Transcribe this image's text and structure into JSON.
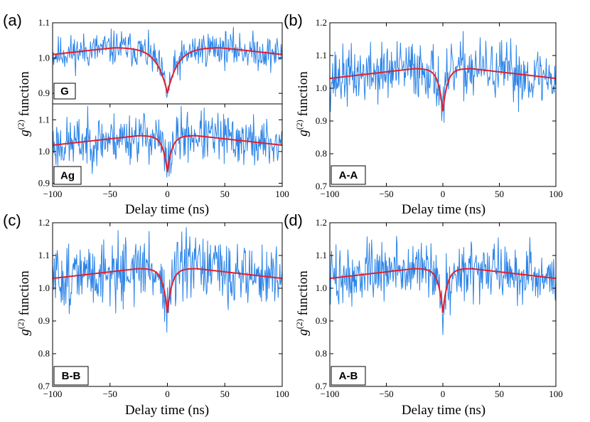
{
  "figure": {
    "panels": [
      {
        "letter": "(a)",
        "ylabel_main": "g",
        "ylabel_sup": "(2)",
        "ylabel_rest": " function",
        "xlabel": "Delay time (ns)"
      },
      {
        "letter": "(b)",
        "ylabel_main": "g",
        "ylabel_sup": "(2)",
        "ylabel_rest": " function",
        "xlabel": "Delay time (ns)"
      },
      {
        "letter": "(c)",
        "ylabel_main": "g",
        "ylabel_sup": "(2)",
        "ylabel_rest": " function",
        "xlabel": "Delay time (ns)"
      },
      {
        "letter": "(d)",
        "ylabel_main": "g",
        "ylabel_sup": "(2)",
        "ylabel_rest": " function",
        "xlabel": "Delay time (ns)"
      }
    ]
  },
  "chart_data": [
    {
      "id": "a-top",
      "type": "line",
      "tag": "G",
      "xlim": [
        -100,
        100
      ],
      "ylim": [
        0.87,
        1.1
      ],
      "xticks": [],
      "yticks": [
        0.9,
        1.0,
        1.1
      ],
      "ytick_labels": [
        "0.9",
        "1.0",
        "1.1"
      ],
      "colors": {
        "data": "#2b84e8",
        "fit": "#e0202e"
      },
      "fit": {
        "dip_min": 0.9,
        "peak": 1.03,
        "peak_at": 45,
        "edge": 1.01,
        "dip_width": 9
      },
      "noise_amplitude": 0.025,
      "seed": 11,
      "n_points": 400
    },
    {
      "id": "a-bottom",
      "type": "line",
      "tag": "Ag",
      "xlim": [
        -100,
        100
      ],
      "ylim": [
        0.89,
        1.15
      ],
      "xticks": [
        -100,
        -50,
        0,
        50,
        100
      ],
      "xtick_labels": [
        "−100",
        "−50",
        "0",
        "50",
        "100"
      ],
      "yticks": [
        0.9,
        1.0,
        1.1
      ],
      "ytick_labels": [
        "0.9",
        "1.0",
        "1.1"
      ],
      "colors": {
        "data": "#2b84e8",
        "fit": "#e0202e"
      },
      "fit": {
        "dip_min": 0.935,
        "peak": 1.05,
        "peak_at": 25,
        "edge": 1.02,
        "dip_width": 4
      },
      "noise_amplitude": 0.04,
      "seed": 23,
      "n_points": 400
    },
    {
      "id": "b",
      "type": "line",
      "tag": "A-A",
      "xlim": [
        -100,
        100
      ],
      "ylim": [
        0.7,
        1.2
      ],
      "xticks": [
        -100,
        -50,
        0,
        50,
        100
      ],
      "xtick_labels": [
        "−100",
        "−50",
        "0",
        "50",
        "100"
      ],
      "yticks": [
        0.7,
        0.8,
        0.9,
        1.0,
        1.1,
        1.2
      ],
      "ytick_labels": [
        "0.7",
        "0.8",
        "0.9",
        "1.0",
        "1.1",
        "1.2"
      ],
      "colors": {
        "data": "#2b84e8",
        "fit": "#e0202e"
      },
      "fit": {
        "dip_min": 0.93,
        "peak": 1.06,
        "peak_at": 25,
        "edge": 1.03,
        "dip_width": 4
      },
      "noise_amplitude": 0.045,
      "seed": 37,
      "n_points": 400
    },
    {
      "id": "c",
      "type": "line",
      "tag": "B-B",
      "xlim": [
        -100,
        100
      ],
      "ylim": [
        0.7,
        1.2
      ],
      "xticks": [
        -100,
        -50,
        0,
        50,
        100
      ],
      "xtick_labels": [
        "−100",
        "−50",
        "0",
        "50",
        "100"
      ],
      "yticks": [
        0.7,
        0.8,
        0.9,
        1.0,
        1.1,
        1.2
      ],
      "ytick_labels": [
        "0.7",
        "0.8",
        "0.9",
        "1.0",
        "1.1",
        "1.2"
      ],
      "colors": {
        "data": "#2b84e8",
        "fit": "#e0202e"
      },
      "fit": {
        "dip_min": 0.925,
        "peak": 1.06,
        "peak_at": 25,
        "edge": 1.03,
        "dip_width": 4
      },
      "noise_amplitude": 0.05,
      "seed": 51,
      "n_points": 400
    },
    {
      "id": "d",
      "type": "line",
      "tag": "A-B",
      "xlim": [
        -100,
        100
      ],
      "ylim": [
        0.7,
        1.2
      ],
      "xticks": [
        -100,
        -50,
        0,
        50,
        100
      ],
      "xtick_labels": [
        "−100",
        "−50",
        "0",
        "50",
        "100"
      ],
      "yticks": [
        0.7,
        0.8,
        0.9,
        1.0,
        1.1,
        1.2
      ],
      "ytick_labels": [
        "0.7",
        "0.8",
        "0.9",
        "1.0",
        "1.1",
        "1.2"
      ],
      "colors": {
        "data": "#2b84e8",
        "fit": "#e0202e"
      },
      "fit": {
        "dip_min": 0.925,
        "peak": 1.06,
        "peak_at": 25,
        "edge": 1.03,
        "dip_width": 4
      },
      "noise_amplitude": 0.045,
      "seed": 73,
      "n_points": 400
    }
  ]
}
